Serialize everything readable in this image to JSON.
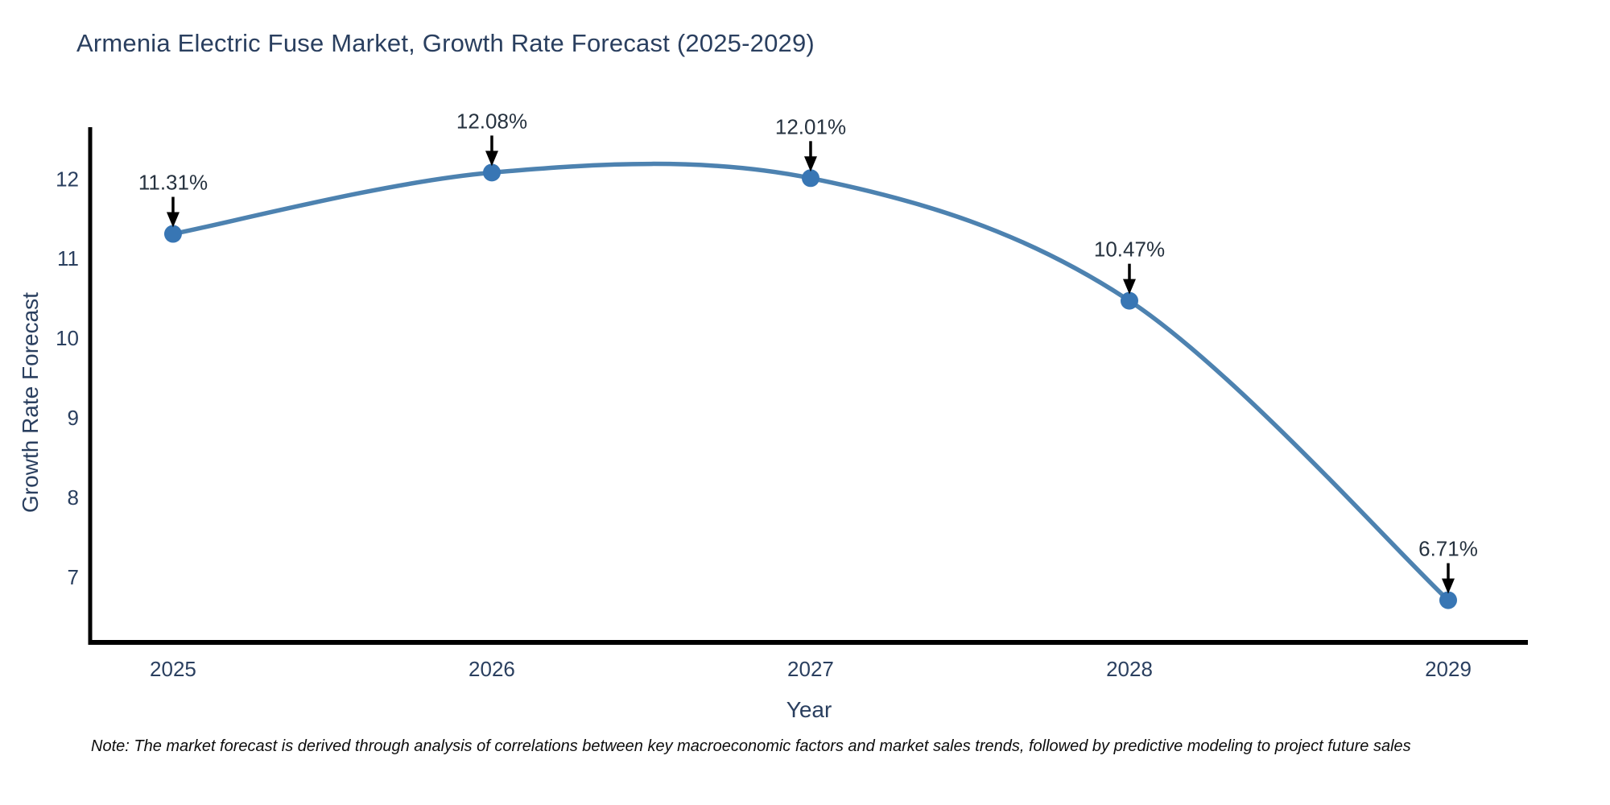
{
  "chart_data": {
    "type": "line",
    "title": "Armenia Electric Fuse Market, Growth Rate Forecast (2025-2029)",
    "xlabel": "Year",
    "ylabel": "Growth Rate Forecast",
    "x": [
      2025,
      2026,
      2027,
      2028,
      2029
    ],
    "series": [
      {
        "name": "Growth Rate Forecast",
        "values": [
          11.31,
          12.08,
          12.01,
          10.47,
          6.71
        ],
        "point_labels": [
          "11.31%",
          "12.08%",
          "12.01%",
          "10.47%",
          "6.71%"
        ]
      }
    ],
    "xticks": [
      "2025",
      "2026",
      "2027",
      "2028",
      "2029"
    ],
    "yticks": [
      7,
      8,
      9,
      10,
      11,
      12
    ],
    "xlim": [
      2024.74,
      2029.25
    ],
    "ylim": [
      6.18,
      12.65
    ],
    "grid": false,
    "legend_position": "none",
    "line_shape": "spline",
    "line_color": "#4d82b0",
    "marker_color": "#3876b4",
    "arrow_color": "#000000",
    "axis_color": "#000000",
    "text_color": "#2a3f5f"
  },
  "note": "Note: The market forecast is derived through analysis of correlations between key macroeconomic factors and market sales trends, followed by predictive modeling to project future sales"
}
